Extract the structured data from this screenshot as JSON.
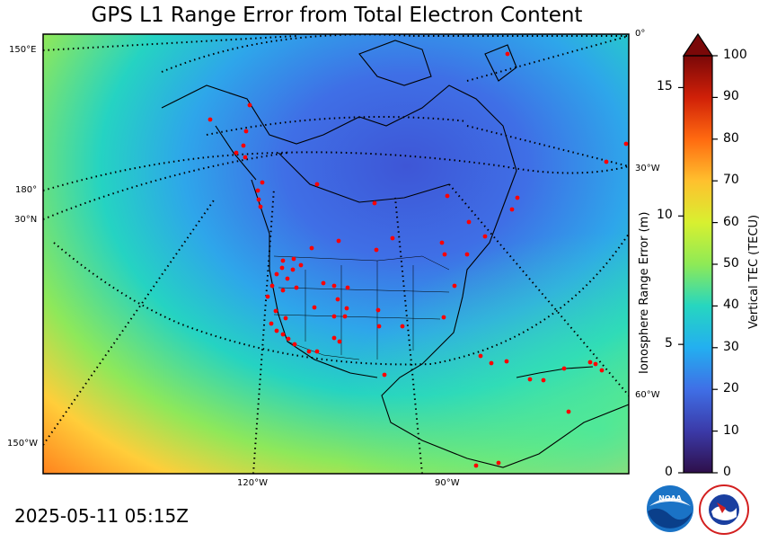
{
  "title": "GPS L1 Range Error from Total Electron Content",
  "timestamp": "2025-05-11 05:15Z",
  "grid_labels": {
    "lon_150e": "150°E",
    "lon_180": "180°",
    "lat_30n": "30°N",
    "lon_150w": "150°W",
    "lon_120w": "120°W",
    "lon_90w": "90°W",
    "lon_0": "0°",
    "lon_30w": "30°W",
    "lon_60w": "60°W"
  },
  "colorbar": {
    "left_axis_title": "Ionosphere Range Error (m)",
    "right_axis_title": "Vertical TEC (TECU)",
    "left_ticks": [
      "0",
      "5",
      "10",
      "15"
    ],
    "left_tick_values": [
      0,
      5,
      10,
      15
    ],
    "left_max": 16.24,
    "right_ticks": [
      "0",
      "10",
      "20",
      "30",
      "40",
      "50",
      "60",
      "70",
      "80",
      "90",
      "100"
    ],
    "right_tick_values": [
      0,
      10,
      20,
      30,
      40,
      50,
      60,
      70,
      80,
      90,
      100
    ],
    "right_max": 100,
    "extend": "max"
  },
  "colors": {
    "map_border": "#000000",
    "station_dot": "#ff0000",
    "low_tec": "#3a5ad8",
    "high_tec": "#ff7a1a"
  },
  "logos": {
    "noaa_text": "NOAA",
    "nws_text": "NATIONAL WEATHER SERVICE"
  },
  "stations_count_hint": "red dots"
}
